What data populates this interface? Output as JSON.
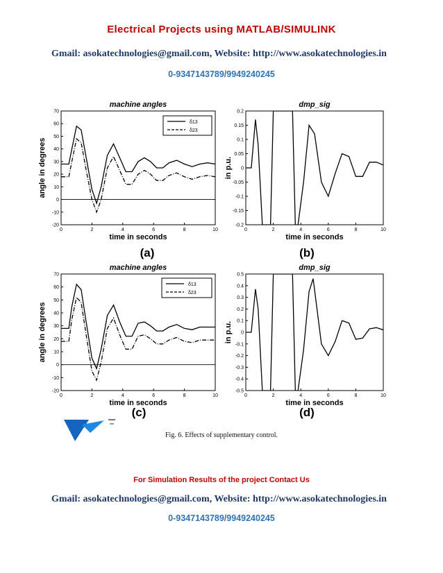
{
  "header": {
    "title": "Electrical Projects using MATLAB/SIMULINK",
    "gmail_label": "Gmail:",
    "gmail": "asokatechnologies@gmail.com",
    "website_label": "Website:",
    "website": "http://www.asokatechnologies.in",
    "phone": "0-9347143789/9949240245"
  },
  "figure": {
    "caption": "Fig. 6. Effects of supplementary control.",
    "panels": [
      {
        "id": "a",
        "label": "(a)",
        "title": "machine angles",
        "xlabel": "time in seconds",
        "ylabel": "angle in degrees",
        "legend": [
          "δ13",
          "δ23"
        ]
      },
      {
        "id": "b",
        "label": "(b)",
        "title": "dmp_sig",
        "xlabel": "time in seconds",
        "ylabel": "in p.u."
      },
      {
        "id": "c",
        "label": "(c)",
        "title": "machine angles",
        "xlabel": "time in seconds",
        "ylabel": "angle in degrees",
        "legend": [
          "δ13",
          "δ23"
        ]
      },
      {
        "id": "d",
        "label": "(d)",
        "title": "dmp_sig",
        "xlabel": "time in seconds",
        "ylabel": "in p.u."
      }
    ]
  },
  "chart_data": [
    {
      "type": "line",
      "panel": "a",
      "title": "machine angles",
      "xlabel": "time in seconds",
      "ylabel": "angle in degrees",
      "xlim": [
        0,
        10
      ],
      "ylim": [
        -20,
        70
      ],
      "xticks": [
        0,
        2,
        4,
        6,
        8,
        10
      ],
      "yticks": [
        -20,
        -10,
        0,
        10,
        20,
        30,
        40,
        50,
        60,
        70
      ],
      "series": [
        {
          "name": "δ13",
          "style": "solid",
          "x": [
            0,
            0.5,
            0.7,
            1.0,
            1.3,
            1.6,
            2.0,
            2.3,
            2.6,
            3.0,
            3.4,
            3.8,
            4.2,
            4.6,
            5.0,
            5.4,
            5.8,
            6.2,
            6.6,
            7.0,
            7.5,
            8.0,
            8.5,
            9.0,
            9.5,
            10
          ],
          "y": [
            28,
            28,
            40,
            58,
            55,
            35,
            8,
            -3,
            10,
            35,
            44,
            33,
            22,
            22,
            30,
            33,
            30,
            25,
            25,
            29,
            31,
            28,
            26,
            28,
            29,
            28
          ]
        },
        {
          "name": "δ23",
          "style": "dashed",
          "x": [
            0,
            0.5,
            0.7,
            1.0,
            1.3,
            1.6,
            2.0,
            2.3,
            2.6,
            3.0,
            3.4,
            3.8,
            4.2,
            4.6,
            5.0,
            5.4,
            5.8,
            6.2,
            6.6,
            7.0,
            7.5,
            8.0,
            8.5,
            9.0,
            9.5,
            10
          ],
          "y": [
            18,
            18,
            30,
            48,
            45,
            25,
            0,
            -10,
            0,
            25,
            34,
            23,
            12,
            12,
            20,
            23,
            20,
            15,
            15,
            19,
            21,
            18,
            16,
            18,
            19,
            18
          ]
        }
      ]
    },
    {
      "type": "line",
      "panel": "b",
      "title": "dmp_sig",
      "xlabel": "time in seconds",
      "ylabel": "in p.u.",
      "xlim": [
        0,
        10
      ],
      "ylim": [
        -0.2,
        0.2
      ],
      "xticks": [
        0,
        2,
        4,
        6,
        8,
        10
      ],
      "yticks": [
        -0.2,
        -0.15,
        -0.1,
        -0.05,
        0,
        0.05,
        0.1,
        0.15,
        0.2
      ],
      "series": [
        {
          "name": "dmp_sig",
          "x": [
            0,
            0.4,
            0.7,
            0.9,
            1.2,
            1.8,
            2.0,
            2.1,
            3.4,
            3.6,
            3.8,
            4.2,
            4.6,
            5.0,
            5.5,
            6.0,
            6.5,
            7.0,
            7.5,
            8.0,
            8.5,
            9.0,
            9.5,
            10
          ],
          "y": [
            0,
            0,
            0.17,
            0.08,
            -0.2,
            -0.2,
            0.2,
            0.2,
            0.2,
            -0.2,
            -0.2,
            -0.05,
            0.15,
            0.12,
            -0.05,
            -0.1,
            -0.02,
            0.05,
            0.04,
            -0.03,
            -0.03,
            0.02,
            0.02,
            0.01
          ]
        }
      ]
    },
    {
      "type": "line",
      "panel": "c",
      "title": "machine angles",
      "xlabel": "time in seconds",
      "ylabel": "angle in degrees",
      "xlim": [
        0,
        10
      ],
      "ylim": [
        -20,
        70
      ],
      "xticks": [
        0,
        2,
        4,
        6,
        8,
        10
      ],
      "yticks": [
        -20,
        -10,
        0,
        10,
        20,
        30,
        40,
        50,
        60,
        70
      ],
      "series": [
        {
          "name": "δ13",
          "style": "solid",
          "x": [
            0,
            0.5,
            0.7,
            1.0,
            1.3,
            1.6,
            2.0,
            2.3,
            2.6,
            3.0,
            3.4,
            3.8,
            4.2,
            4.6,
            5.0,
            5.4,
            5.8,
            6.2,
            6.6,
            7.0,
            7.5,
            8.0,
            8.5,
            9.0,
            9.5,
            10
          ],
          "y": [
            28,
            28,
            45,
            62,
            58,
            35,
            5,
            -3,
            12,
            38,
            46,
            33,
            22,
            22,
            32,
            33,
            30,
            26,
            26,
            29,
            31,
            28,
            27,
            29,
            29,
            29
          ]
        },
        {
          "name": "δ23",
          "style": "dashed",
          "x": [
            0,
            0.5,
            0.7,
            1.0,
            1.3,
            1.6,
            2.0,
            2.3,
            2.6,
            3.0,
            3.4,
            3.8,
            4.2,
            4.6,
            5.0,
            5.4,
            5.8,
            6.2,
            6.6,
            7.0,
            7.5,
            8.0,
            8.5,
            9.0,
            9.5,
            10
          ],
          "y": [
            18,
            18,
            35,
            52,
            48,
            25,
            -5,
            -12,
            2,
            28,
            36,
            23,
            12,
            12,
            22,
            23,
            20,
            16,
            16,
            19,
            21,
            18,
            17,
            19,
            19,
            19
          ]
        }
      ]
    },
    {
      "type": "line",
      "panel": "d",
      "title": "dmp_sig",
      "xlabel": "time in seconds",
      "ylabel": "in p.u.",
      "xlim": [
        0,
        10
      ],
      "ylim": [
        -0.5,
        0.5
      ],
      "xticks": [
        0,
        2,
        4,
        6,
        8,
        10
      ],
      "yticks": [
        -0.5,
        -0.4,
        -0.3,
        -0.2,
        -0.1,
        0,
        0.1,
        0.2,
        0.3,
        0.4,
        0.5
      ],
      "series": [
        {
          "name": "dmp_sig",
          "x": [
            0,
            0.4,
            0.7,
            0.9,
            1.2,
            1.8,
            2.0,
            2.1,
            3.4,
            3.6,
            3.8,
            4.2,
            4.6,
            4.9,
            5.5,
            6.0,
            6.5,
            7.0,
            7.5,
            8.0,
            8.5,
            9.0,
            9.5,
            10
          ],
          "y": [
            0,
            0,
            0.37,
            0.2,
            -0.5,
            -0.5,
            0.5,
            0.5,
            0.5,
            -0.5,
            -0.5,
            -0.15,
            0.35,
            0.46,
            -0.1,
            -0.2,
            -0.08,
            0.1,
            0.08,
            -0.06,
            -0.05,
            0.03,
            0.04,
            0.02
          ]
        }
      ]
    }
  ],
  "footer": {
    "note": "For Simulation Results of the project Contact Us",
    "gmail_label": "Gmail:",
    "gmail": "asokatechnologies@gmail.com",
    "website_label": "Website:",
    "website": "http://www.asokatechnologies.in",
    "phone": "0-9347143789/9949240245"
  }
}
